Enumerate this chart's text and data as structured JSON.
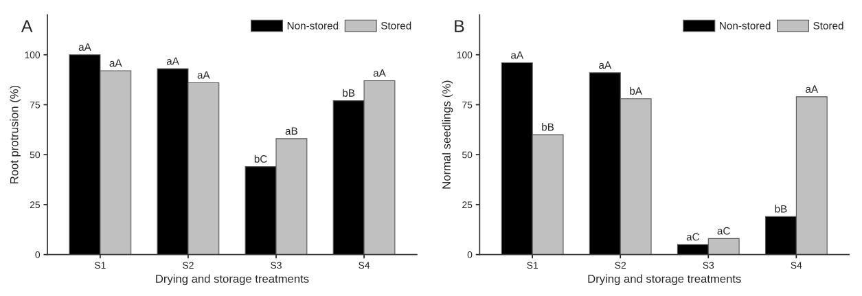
{
  "chart_data": [
    {
      "type": "bar",
      "categories": [
        "S1",
        "S2",
        "S3",
        "S4"
      ],
      "xlabel": "Drying and storage treatments",
      "ylabel": "Root protrusion (%)",
      "annotations": [
        "A"
      ],
      "ylim": [
        0,
        120
      ],
      "yticks": [
        0,
        25,
        50,
        75,
        100
      ],
      "legend": "top right",
      "grid": false,
      "series": [
        {
          "name": "Non-stored",
          "color": "#000000",
          "values": [
            100,
            93,
            44,
            77
          ],
          "value_labels": [
            "aA",
            "aA",
            "bC",
            "bB"
          ]
        },
        {
          "name": "Stored",
          "color": "#c0c0c0",
          "values": [
            92,
            86,
            58,
            87
          ],
          "value_labels": [
            "aA",
            "aA",
            "aB",
            "aA"
          ]
        }
      ]
    },
    {
      "type": "bar",
      "categories": [
        "S1",
        "S2",
        "S3",
        "S4"
      ],
      "xlabel": "Drying and storage treatments",
      "ylabel": "Normal seedlings (%)",
      "annotations": [
        "B"
      ],
      "ylim": [
        0,
        120
      ],
      "yticks": [
        0,
        25,
        50,
        75,
        100
      ],
      "legend": "top right",
      "grid": false,
      "series": [
        {
          "name": "Non-stored",
          "color": "#000000",
          "values": [
            96,
            91,
            5,
            19
          ],
          "value_labels": [
            "aA",
            "aA",
            "aC",
            "bB"
          ]
        },
        {
          "name": "Stored",
          "color": "#c0c0c0",
          "values": [
            60,
            78,
            8,
            79
          ],
          "value_labels": [
            "bB",
            "bA",
            "aC",
            "aA"
          ]
        }
      ]
    }
  ]
}
